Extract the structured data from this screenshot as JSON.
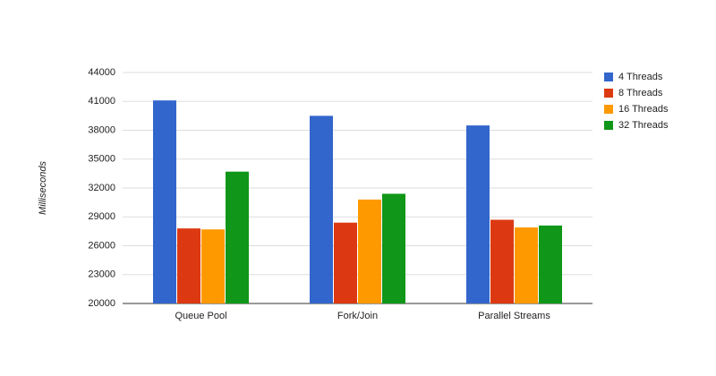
{
  "chart_data": {
    "type": "bar",
    "y_label": "Milliseconds",
    "categories": [
      "Queue Pool",
      "Fork/Join",
      "Parallel Streams"
    ],
    "series": [
      {
        "name": "4 Threads",
        "color": "#3366cc",
        "values": [
          41100,
          39500,
          38500
        ]
      },
      {
        "name": "8 Threads",
        "color": "#dc3912",
        "values": [
          27800,
          28400,
          28700
        ]
      },
      {
        "name": "16 Threads",
        "color": "#ff9900",
        "values": [
          27700,
          30800,
          27900
        ]
      },
      {
        "name": "32 Threads",
        "color": "#109618",
        "values": [
          33700,
          31400,
          28100
        ]
      }
    ],
    "ylim": [
      20000,
      44000
    ],
    "yticks": [
      20000,
      23000,
      26000,
      29000,
      32000,
      35000,
      38000,
      41000,
      44000
    ],
    "grid": true,
    "legend": "right"
  }
}
